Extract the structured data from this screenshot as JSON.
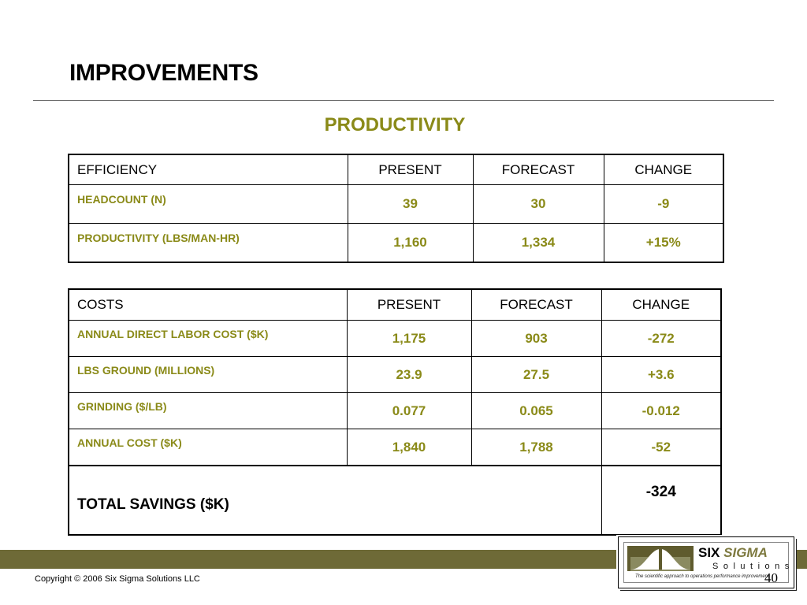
{
  "title": "IMPROVEMENTS",
  "section_heading": "PRODUCTIVITY",
  "efficiency_table": {
    "headers": [
      "EFFICIENCY",
      "PRESENT",
      "FORECAST",
      "CHANGE"
    ],
    "rows": [
      {
        "label": "HEADCOUNT (N)",
        "present": "39",
        "forecast": "30",
        "change": "-9"
      },
      {
        "label": "PRODUCTIVITY (LBS/MAN-HR)",
        "present": "1,160",
        "forecast": "1,334",
        "change": "+15%"
      }
    ]
  },
  "costs_table": {
    "headers": [
      "COSTS",
      "PRESENT",
      "FORECAST",
      "CHANGE"
    ],
    "rows": [
      {
        "label": "ANNUAL DIRECT LABOR COST ($K)",
        "present": "1,175",
        "forecast": "903",
        "change": "-272"
      },
      {
        "label": "LBS GROUND (MILLIONS)",
        "present": "23.9",
        "forecast": "27.5",
        "change": "+3.6"
      },
      {
        "label": "GRINDING ($/LB)",
        "present": "0.077",
        "forecast": "0.065",
        "change": "-0.012"
      },
      {
        "label": "ANNUAL COST ($K)",
        "present": "1,840",
        "forecast": "1,788",
        "change": "-52"
      }
    ],
    "total": {
      "label": "TOTAL SAVINGS ($K)",
      "value": "-324"
    }
  },
  "footer": {
    "copyright": "Copyright © 2006 Six Sigma Solutions LLC",
    "page_number": "40",
    "logo": {
      "brand_word1": "SIX",
      "brand_word2": "SIGMA",
      "sub": "Solutions",
      "tagline": "The scientific approach to operations performance improvement"
    }
  },
  "colors": {
    "accent_olive": "#8a8a18",
    "footer_band": "#6e6a37"
  }
}
